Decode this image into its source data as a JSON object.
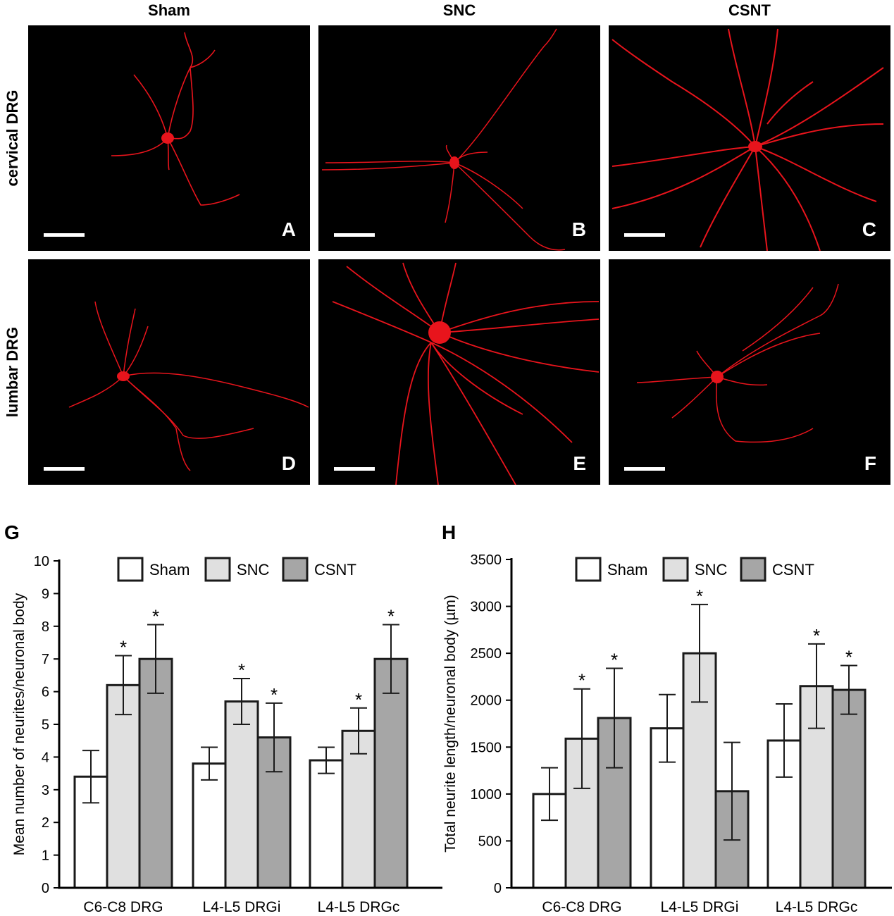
{
  "columns": [
    "Sham",
    "SNC",
    "CSNT"
  ],
  "rows": [
    "cervical DRG",
    "lumbar DRG"
  ],
  "panels": [
    "A",
    "B",
    "C",
    "D",
    "E",
    "F"
  ],
  "colors": {
    "neuron": "#e8141c",
    "sham": "#ffffff",
    "snc": "#e0e0e0",
    "csnt": "#a6a6a6"
  },
  "chart_data": [
    {
      "panel_label": "G",
      "type": "bar",
      "ylabel": "Mean number of neurites/neuronal body",
      "xlabel": "",
      "ylim": [
        0,
        10
      ],
      "yticks": [
        0,
        1,
        2,
        3,
        4,
        5,
        6,
        7,
        8,
        9,
        10
      ],
      "categories": [
        "C6-C8 DRG",
        "L4-L5 DRGi",
        "L4-L5 DRGc"
      ],
      "legend_position": "top-right",
      "series": [
        {
          "name": "Sham",
          "values": [
            3.4,
            3.8,
            3.9
          ],
          "errors": [
            0.8,
            0.5,
            0.4
          ],
          "significant": [
            false,
            false,
            false
          ]
        },
        {
          "name": "SNC",
          "values": [
            6.2,
            5.7,
            4.8
          ],
          "errors": [
            0.9,
            0.7,
            0.7
          ],
          "significant": [
            true,
            true,
            true
          ]
        },
        {
          "name": "CSNT",
          "values": [
            7.0,
            4.6,
            7.0
          ],
          "errors": [
            1.05,
            1.05,
            1.05
          ],
          "significant": [
            true,
            true,
            true
          ]
        }
      ],
      "significance_marker": "*"
    },
    {
      "panel_label": "H",
      "type": "bar",
      "ylabel": "Total neurite length/neuronal body (µm)",
      "xlabel": "",
      "ylim": [
        0,
        3500
      ],
      "yticks": [
        0,
        500,
        1000,
        1500,
        2000,
        2500,
        3000,
        3500
      ],
      "categories": [
        "C6-C8 DRG",
        "L4-L5 DRGi",
        "L4-L5 DRGc"
      ],
      "legend_position": "top-right",
      "series": [
        {
          "name": "Sham",
          "values": [
            1000,
            1700,
            1570
          ],
          "errors": [
            280,
            360,
            390
          ],
          "significant": [
            false,
            false,
            false
          ]
        },
        {
          "name": "SNC",
          "values": [
            1590,
            2500,
            2150
          ],
          "errors": [
            530,
            520,
            450
          ],
          "significant": [
            true,
            true,
            true
          ]
        },
        {
          "name": "CSNT",
          "values": [
            1810,
            1030,
            2110
          ],
          "errors": [
            530,
            520,
            260
          ],
          "significant": [
            true,
            false,
            true
          ]
        }
      ],
      "significance_marker": "*"
    }
  ]
}
